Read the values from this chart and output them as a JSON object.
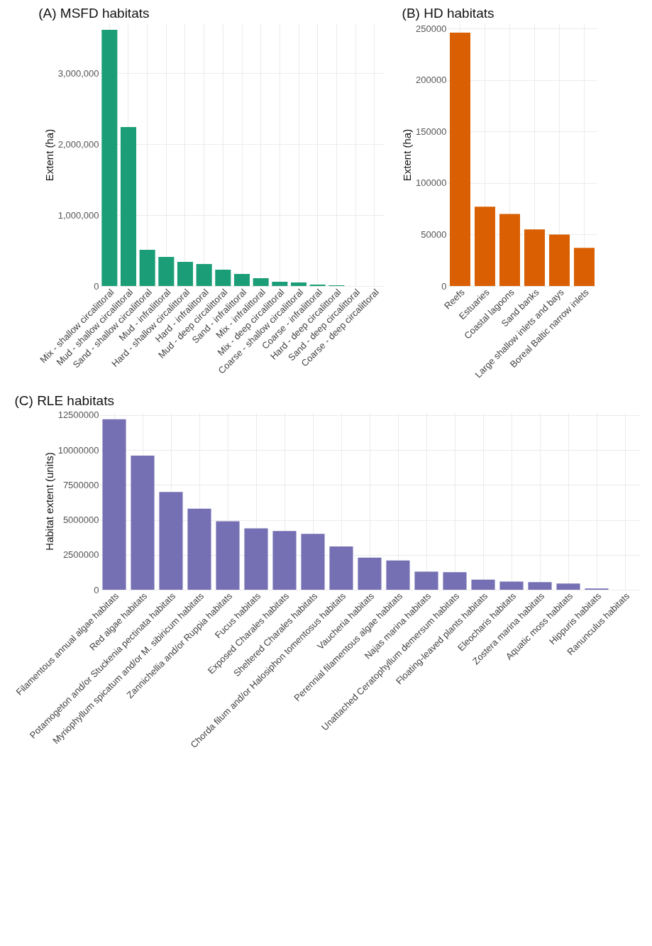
{
  "chart_data": [
    {
      "type": "bar",
      "title": "(A) MSFD habitats",
      "ylabel": "Extent (ha)",
      "color": "#1b9e77",
      "grid": true,
      "categories": [
        "Mix - shallow circalittoral",
        "Mud - shallow circalittoral",
        "Sand - shallow circalittoral",
        "Mud - infralittoral",
        "Hard - shallow circalittoral",
        "Hard - infralittoral",
        "Mud - deep circalittoral",
        "Sand - infralittoral",
        "Mix - infralittoral",
        "Mix - deep circalittoral",
        "Coarse - shallow circalittoral",
        "Coarse - infralittoral",
        "Hard - deep circalittoral",
        "Sand - deep circalittoral",
        "Coarse - deep circalittoral"
      ],
      "values": [
        3610000,
        2240000,
        510000,
        410000,
        340000,
        310000,
        230000,
        170000,
        110000,
        60000,
        50000,
        20000,
        10000,
        0,
        0
      ],
      "ylim": [
        0,
        3700000
      ],
      "yticks": [
        {
          "value": 0,
          "label": "0"
        },
        {
          "value": 1000000,
          "label": "1,000,000"
        },
        {
          "value": 2000000,
          "label": "2,000,000"
        },
        {
          "value": 3000000,
          "label": "3,000,000"
        }
      ]
    },
    {
      "type": "bar",
      "title": "(B) HD habitats",
      "ylabel": "Extent (ha)",
      "color": "#d95f02",
      "grid": true,
      "categories": [
        "Reefs",
        "Estuaries",
        "Coastal lagoons",
        "Sand banks",
        "Large shallow inlets and bays",
        "Boreal Baltic narrow inlets"
      ],
      "values": [
        246000,
        77000,
        70000,
        55000,
        50000,
        37000
      ],
      "ylim": [
        0,
        255000
      ],
      "yticks": [
        0,
        50000,
        100000,
        150000,
        200000,
        250000
      ]
    },
    {
      "type": "bar",
      "title": "(C) RLE habitats",
      "ylabel": "Habitat extent (units)",
      "color": "#7570b3",
      "grid": true,
      "categories": [
        "Filamentous annual algae habitats",
        "Red algae habitats",
        "Potamogeton and/or Stuckenia pectinata habitats",
        "Myriophyllum spicatum and/or M. sibiricum habitats",
        "Zannichellia and/or Ruppia habitats",
        "Fucus habitats",
        "Exposed Charales habitats",
        "Sheltered Charales habitats",
        "Chorda filum and/or Halosiphon tomentosus habitats",
        "Vaucheria habitats",
        "Perennial filamentous algae habitats",
        "Najas marina habitats",
        "Unattached Ceratophyllum demersum habitats",
        "Floating-leaved plants habitats",
        "Eleocharis habitats",
        "Zostera marina habitats",
        "Aquatic moss habitats",
        "Hippuris habitats",
        "Ranunculus habitats"
      ],
      "values": [
        12200000,
        9600000,
        7000000,
        5800000,
        4900000,
        4400000,
        4200000,
        4000000,
        3100000,
        2300000,
        2100000,
        1300000,
        1260000,
        730000,
        580000,
        550000,
        440000,
        90000,
        0
      ],
      "ylim": [
        0,
        12700000
      ],
      "yticks": [
        0,
        2500000,
        5000000,
        7500000,
        10000000,
        12500000
      ]
    }
  ]
}
